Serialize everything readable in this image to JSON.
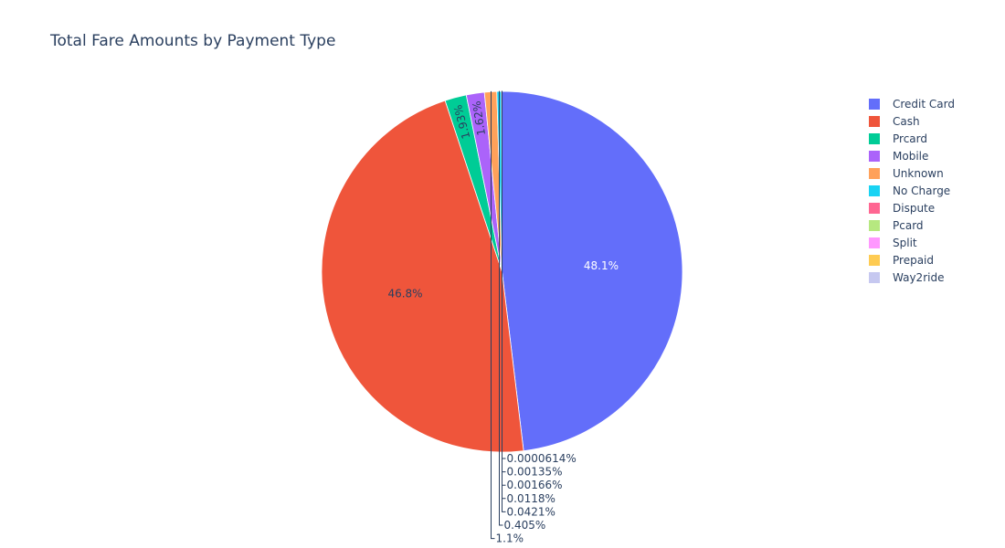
{
  "chart_data": {
    "type": "pie",
    "title": "Total Fare Amounts by Payment Type",
    "legend_position": "top-right",
    "slices": [
      {
        "name": "Credit Card",
        "value": 48.1,
        "label": "48.1%",
        "color": "#636efa"
      },
      {
        "name": "Cash",
        "value": 46.8,
        "label": "46.8%",
        "color": "#ef553b"
      },
      {
        "name": "Prcard",
        "value": 1.93,
        "label": "1.93%",
        "color": "#00cc96"
      },
      {
        "name": "Mobile",
        "value": 1.62,
        "label": "1.62%",
        "color": "#ab63fa"
      },
      {
        "name": "Unknown",
        "value": 1.1,
        "label": "1.1%",
        "color": "#ffa15a"
      },
      {
        "name": "No Charge",
        "value": 0.405,
        "label": "0.405%",
        "color": "#19d3f3"
      },
      {
        "name": "Dispute",
        "value": 0.0421,
        "label": "0.0421%",
        "color": "#ff6692"
      },
      {
        "name": "Pcard",
        "value": 0.0118,
        "label": "0.0118%",
        "color": "#b6e880"
      },
      {
        "name": "Split",
        "value": 0.00166,
        "label": "0.00166%",
        "color": "#ff97ff"
      },
      {
        "name": "Prepaid",
        "value": 0.00135,
        "label": "0.00135%",
        "color": "#fecb52"
      },
      {
        "name": "Way2ride",
        "value": 6.14e-05,
        "label": "0.0000614%",
        "color": "#c6c8f0"
      }
    ]
  }
}
